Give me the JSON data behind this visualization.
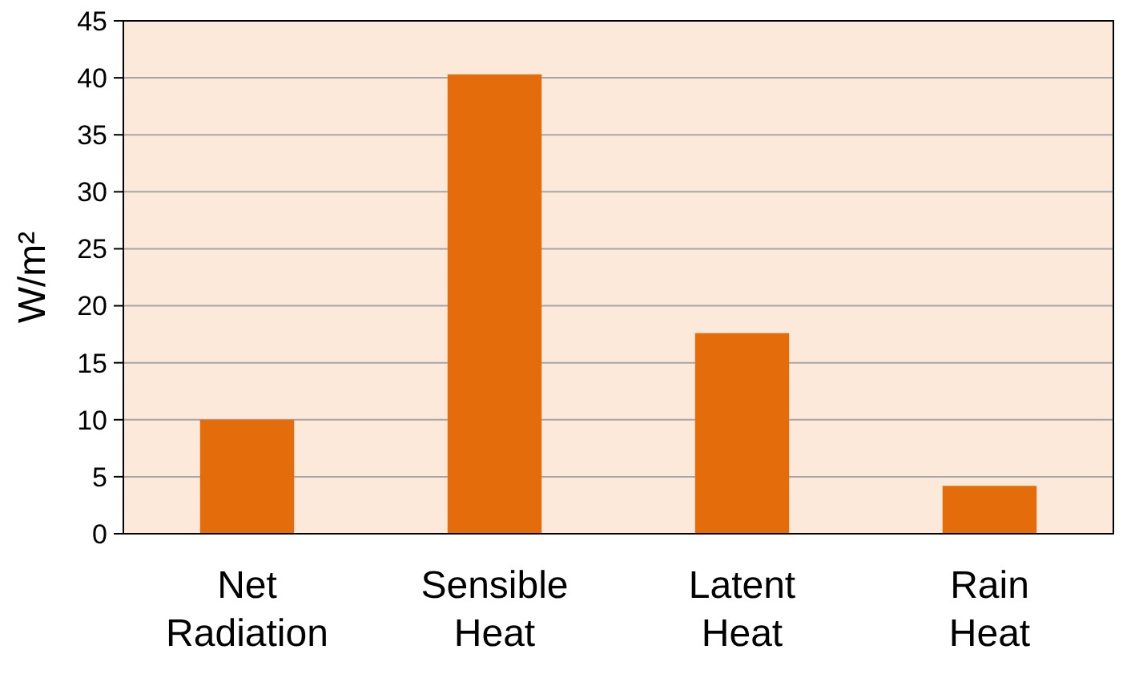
{
  "chart_data": {
    "type": "bar",
    "ylabel": "W/m²",
    "categories": [
      "Net Radiation",
      "Sensible Heat",
      "Latent Heat",
      "Rain Heat"
    ],
    "values": [
      10,
      40.3,
      17.6,
      4.2
    ],
    "color": "#e46c0a",
    "ylim": [
      0,
      45
    ],
    "yticks": [
      0,
      5,
      10,
      15,
      20,
      25,
      30,
      35,
      40,
      45
    ],
    "grid": "y"
  }
}
